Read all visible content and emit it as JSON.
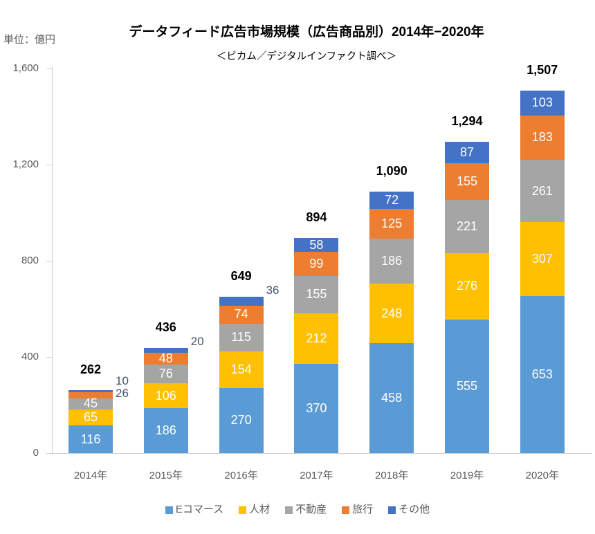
{
  "unit_label": "単位：億円",
  "title": "データフィード広告市場規模（広告商品別）2014年−2020年",
  "subtitle": "＜ビカム／デジタルインファクト調べ＞",
  "colors": {
    "axis_text": "#595959",
    "axis_line": "#c9cdd1",
    "segment_label": "#ffffff",
    "outside_label": "#44546A",
    "total_label": "#000000"
  },
  "chart_data": {
    "type": "bar",
    "stacked": true,
    "title": "データフィード広告市場規模（広告商品別）2014年−2020年",
    "subtitle": "＜ビカム／デジタルインファクト調べ＞",
    "unit": "億円",
    "categories": [
      "2014年",
      "2015年",
      "2016年",
      "2017年",
      "2018年",
      "2019年",
      "2020年"
    ],
    "series": [
      {
        "key": "ecommerce",
        "name": "Eコマース",
        "color": "#5B9BD5",
        "values": [
          116,
          186,
          270,
          370,
          458,
          555,
          653
        ]
      },
      {
        "key": "hr",
        "name": "人材",
        "color": "#FFC000",
        "values": [
          65,
          106,
          154,
          212,
          248,
          276,
          307
        ]
      },
      {
        "key": "real-estate",
        "name": "不動産",
        "color": "#A5A5A5",
        "values": [
          45,
          76,
          115,
          155,
          186,
          221,
          261
        ]
      },
      {
        "key": "travel",
        "name": "旅行",
        "color": "#ED7D31",
        "values": [
          26,
          48,
          74,
          99,
          125,
          155,
          183
        ]
      },
      {
        "key": "other",
        "name": "その他",
        "color": "#4472C4",
        "values": [
          10,
          20,
          36,
          58,
          72,
          87,
          103
        ]
      }
    ],
    "totals": [
      "262",
      "436",
      "649",
      "894",
      "1,090",
      "1,294",
      "1,507"
    ],
    "ylim": [
      0,
      1600
    ],
    "yticks": [
      {
        "label": "0",
        "value": 0
      },
      {
        "label": "400",
        "value": 400
      },
      {
        "label": "800",
        "value": 800
      },
      {
        "label": "1,200",
        "value": 1200
      },
      {
        "label": "1,600",
        "value": 1600
      }
    ],
    "grid": false,
    "legend_position": "bottom"
  }
}
